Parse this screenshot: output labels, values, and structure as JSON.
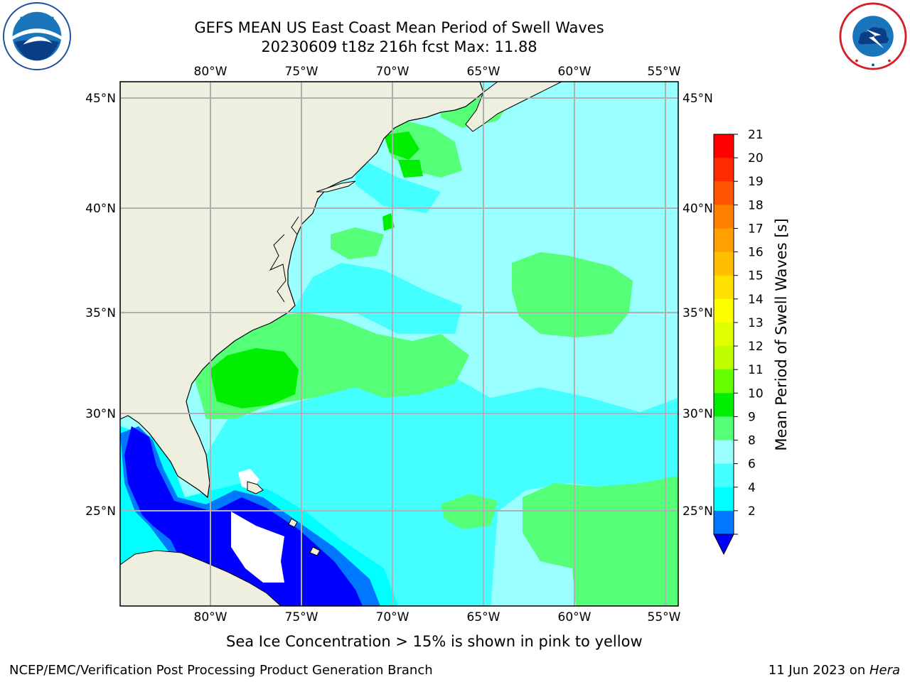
{
  "title": {
    "line1": "GEFS MEAN US East Coast Mean Period of Swell Waves",
    "line2": "20230609 t18z 216h fcst   Max: 11.88"
  },
  "logos": {
    "left": "noaa-logo",
    "right": "nws-logo"
  },
  "map": {
    "region": "US East Coast",
    "lon_labels": [
      "80°W",
      "75°W",
      "70°W",
      "65°W",
      "60°W",
      "55°W"
    ],
    "lat_labels": [
      "45°N",
      "40°N",
      "35°N",
      "30°N",
      "25°N"
    ],
    "colors": {
      "land": "#efefdf",
      "coast": "#000000",
      "grid": "#b0b0b0"
    }
  },
  "colorbar": {
    "label": "Mean Period of Swell Waves [s]",
    "ticks": [
      "21",
      "20",
      "19",
      "18",
      "17",
      "16",
      "15",
      "14",
      "13",
      "12",
      "11",
      "10",
      "9",
      "8",
      "6",
      "4",
      "2"
    ],
    "colors": [
      "#ff0000",
      "#ff2a00",
      "#ff5500",
      "#ff7f00",
      "#ff9f00",
      "#ffbf00",
      "#ffe000",
      "#ffff00",
      "#e0ff00",
      "#c0ff00",
      "#66ff00",
      "#00ee00",
      "#55ff77",
      "#99ffff",
      "#44ffff",
      "#00ffff",
      "#0077ff"
    ],
    "under_color": "#0000ff"
  },
  "caption": "Sea Ice Concentration > 15% is shown in pink to yellow",
  "footer": {
    "left": "NCEP/EMC/Verification Post Processing Product Generation Branch",
    "right_date": "11 Jun 2023 on ",
    "right_host": "Hera"
  }
}
